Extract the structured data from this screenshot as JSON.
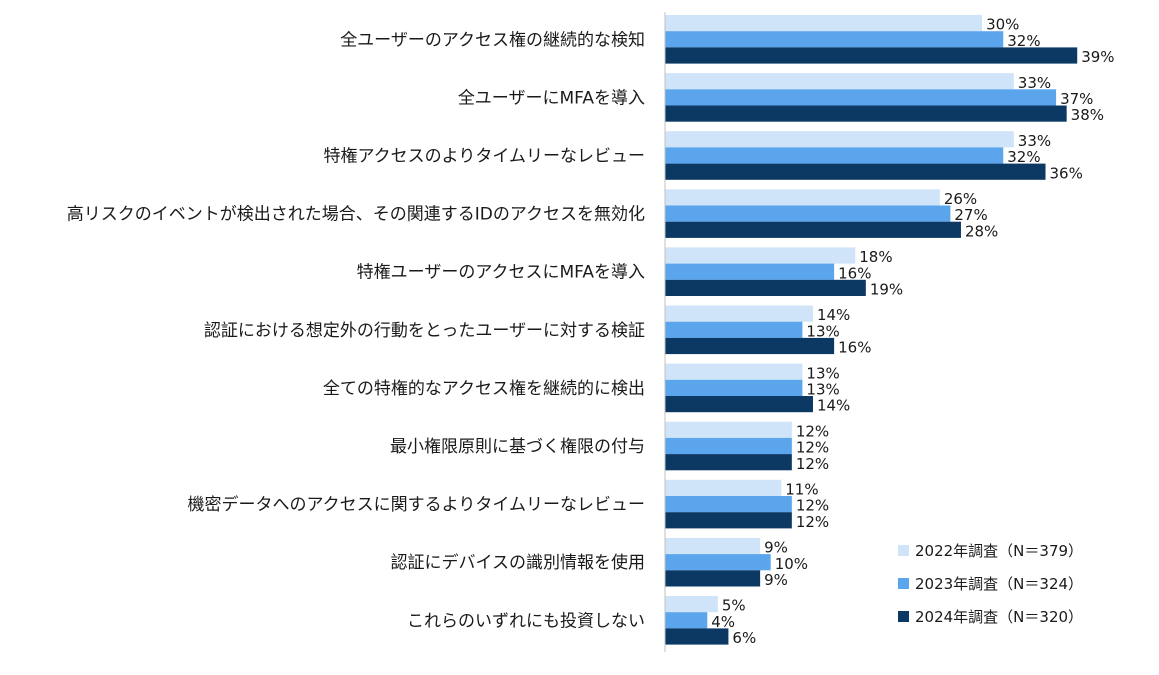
{
  "chart_data": {
    "type": "bar",
    "orientation": "horizontal",
    "categories": [
      "全ユーザーのアクセス権の継続的な検知",
      "全ユーザーにMFAを導入",
      "特権アクセスのよりタイムリーなレビュー",
      "高リスクのイベントが検出された場合、その関連するIDのアクセスを無効化",
      "特権ユーザーのアクセスにMFAを導入",
      "認証における想定外の行動をとったユーザーに対する検証",
      "全ての特権的なアクセス権を継続的に検出",
      "最小権限原則に基づく権限の付与",
      "機密データへのアクセスに関するよりタイムリーなレビュー",
      "認証にデバイスの識別情報を使用",
      "これらのいずれにも投資しない"
    ],
    "series": [
      {
        "name": "2022年調査（N＝379）",
        "color": "#cfe4f8",
        "values": [
          30,
          33,
          33,
          26,
          18,
          14,
          13,
          12,
          11,
          9,
          5
        ]
      },
      {
        "name": "2023年調査（N＝324）",
        "color": "#5aa5ec",
        "values": [
          32,
          37,
          32,
          27,
          16,
          13,
          13,
          12,
          12,
          10,
          4
        ]
      },
      {
        "name": "2024年調査（N＝320）",
        "color": "#0c3864",
        "values": [
          39,
          38,
          36,
          28,
          19,
          16,
          14,
          12,
          12,
          9,
          6
        ]
      }
    ],
    "value_suffix": "%",
    "xlim": [
      0,
      45
    ],
    "grid": false,
    "legend_position": "bottom-right",
    "title": "",
    "xlabel": "",
    "ylabel": ""
  }
}
